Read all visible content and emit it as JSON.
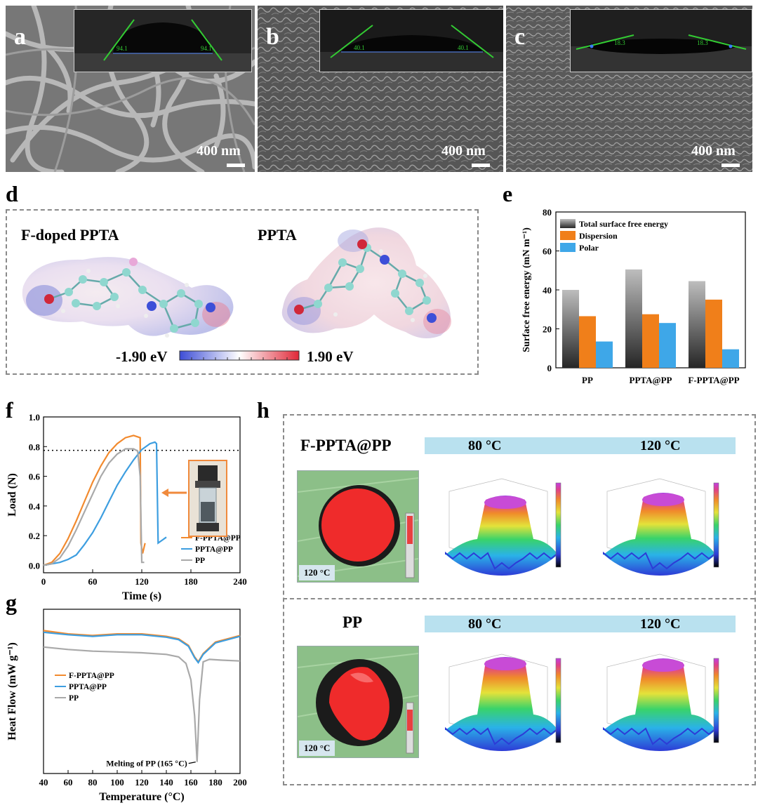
{
  "panels": {
    "a": {
      "label": "a",
      "scale": "400 nm",
      "angle_left": "94.1",
      "angle_right": "94.1"
    },
    "b": {
      "label": "b",
      "scale": "400 nm",
      "angle_left": "40.1",
      "angle_right": "40.1"
    },
    "c": {
      "label": "c",
      "scale": "400 nm",
      "angle_left": "18.3",
      "angle_right": "18.3"
    },
    "d": {
      "label": "d",
      "left_title": "F-doped PPTA",
      "right_title": "PPTA",
      "colorbar_min": "-1.90 eV",
      "colorbar_max": "1.90 eV"
    },
    "e": {
      "label": "e"
    },
    "f": {
      "label": "f"
    },
    "g": {
      "label": "g"
    },
    "h": {
      "label": "h",
      "top_title": "F-PPTA@PP",
      "bottom_title": "PP",
      "temp_80": "80 °C",
      "temp_120": "120 °C",
      "photo_tag": "120 °C"
    }
  },
  "colors": {
    "total": "#555555",
    "dispersion": "#f07f1a",
    "polar": "#3ea7e8",
    "fppta": "#f28a2e",
    "ppta": "#3d9ee0",
    "pp": "#a9a9a9"
  },
  "chart_data": [
    {
      "id": "e",
      "type": "bar",
      "ylabel": "Surface free energy (mN m⁻¹)",
      "ylim": [
        0,
        80
      ],
      "yticks": [
        0,
        20,
        40,
        60,
        80
      ],
      "categories": [
        "PP",
        "PPTA@PP",
        "F-PPTA@PP"
      ],
      "series": [
        {
          "name": "Total surface free energy",
          "values": [
            40,
            50.5,
            44.5
          ]
        },
        {
          "name": "Dispersion",
          "values": [
            26.5,
            27.5,
            35
          ]
        },
        {
          "name": "Polar",
          "values": [
            13.5,
            23,
            9.5
          ]
        }
      ],
      "legend": "top-left"
    },
    {
      "id": "f",
      "type": "line",
      "xlabel": "Time (s)",
      "ylabel": "Load (N)",
      "xlim": [
        0,
        240
      ],
      "ylim": [
        -0.05,
        1.0
      ],
      "xticks": [
        0,
        60,
        120,
        180,
        240
      ],
      "yticks": [
        0.0,
        0.2,
        0.4,
        0.6,
        0.8,
        1.0
      ],
      "reference_line": 0.775,
      "series": [
        {
          "name": "F-PPTA@PP",
          "x": [
            0,
            10,
            20,
            30,
            40,
            50,
            60,
            70,
            80,
            90,
            100,
            110,
            118,
            119,
            121,
            124
          ],
          "y": [
            0,
            0.02,
            0.08,
            0.18,
            0.3,
            0.43,
            0.56,
            0.67,
            0.76,
            0.82,
            0.86,
            0.875,
            0.86,
            0.15,
            0.08,
            0.15
          ]
        },
        {
          "name": "PPTA@PP",
          "x": [
            0,
            20,
            30,
            40,
            50,
            60,
            70,
            80,
            90,
            100,
            110,
            120,
            130,
            136,
            138,
            140,
            145,
            150
          ],
          "y": [
            0,
            0.02,
            0.04,
            0.07,
            0.14,
            0.22,
            0.32,
            0.43,
            0.54,
            0.63,
            0.71,
            0.78,
            0.82,
            0.83,
            0.82,
            0.15,
            0.17,
            0.19
          ]
        },
        {
          "name": "PP",
          "x": [
            0,
            10,
            20,
            30,
            40,
            50,
            60,
            70,
            80,
            90,
            100,
            110,
            115,
            118,
            120,
            123
          ],
          "y": [
            0,
            0.01,
            0.05,
            0.13,
            0.24,
            0.36,
            0.48,
            0.6,
            0.69,
            0.75,
            0.785,
            0.785,
            0.77,
            0.6,
            0.02,
            0.02
          ]
        }
      ],
      "legend": "bottom-right"
    },
    {
      "id": "g",
      "type": "line",
      "xlabel": "Temperature (°C)",
      "ylabel": "Heat Flow (mW g⁻¹)",
      "xlim": [
        40,
        200
      ],
      "xticks": [
        40,
        60,
        80,
        100,
        120,
        140,
        160,
        180,
        200
      ],
      "annotation": "Melting of PP (165 °C)",
      "series": [
        {
          "name": "F-PPTA@PP",
          "x": [
            40,
            60,
            80,
            100,
            120,
            140,
            150,
            158,
            163,
            166,
            170,
            180,
            200
          ],
          "y": [
            3.2,
            3.0,
            2.9,
            3.0,
            3.0,
            2.85,
            2.7,
            2.3,
            1.6,
            1.3,
            1.8,
            2.5,
            2.9
          ]
        },
        {
          "name": "PPTA@PP",
          "x": [
            40,
            60,
            80,
            100,
            120,
            140,
            150,
            158,
            163,
            166,
            170,
            180,
            200
          ],
          "y": [
            3.1,
            2.95,
            2.85,
            2.95,
            2.95,
            2.8,
            2.65,
            2.25,
            1.55,
            1.25,
            1.75,
            2.45,
            2.85
          ]
        },
        {
          "name": "PP",
          "x": [
            40,
            60,
            80,
            100,
            120,
            140,
            150,
            156,
            160,
            163,
            165,
            167,
            170,
            175,
            185,
            200
          ],
          "y": [
            2.2,
            2.05,
            1.95,
            1.9,
            1.85,
            1.75,
            1.6,
            1.2,
            0.2,
            -2.0,
            -4.8,
            -1.0,
            1.3,
            1.45,
            1.4,
            1.35
          ]
        }
      ],
      "legend": "middle-left"
    }
  ]
}
